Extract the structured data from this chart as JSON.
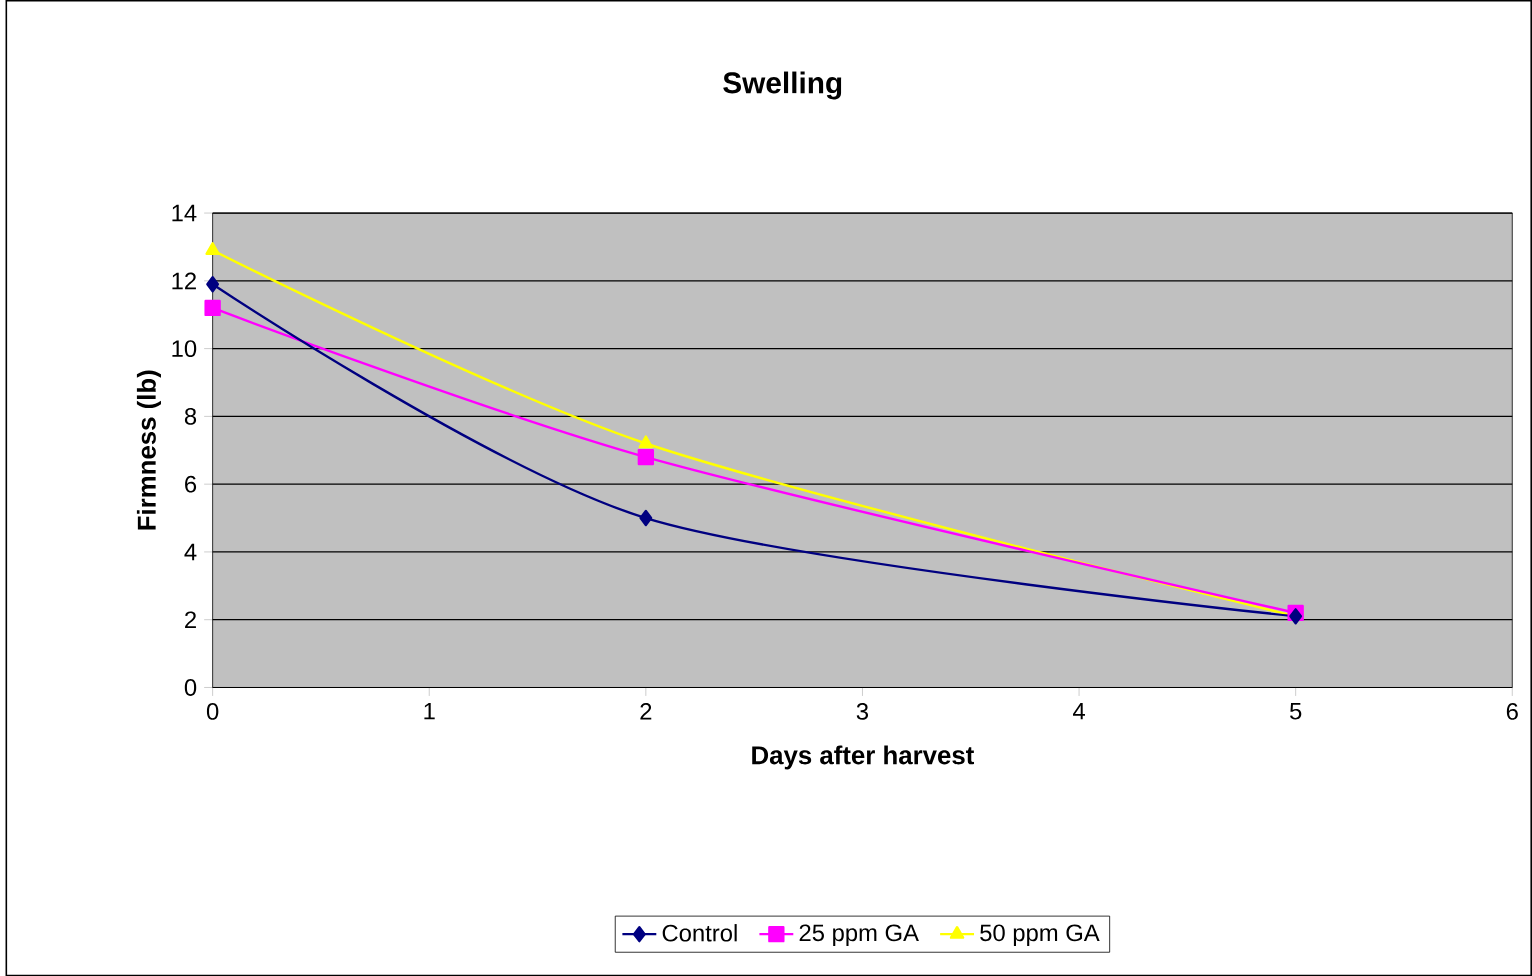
{
  "chart_data": {
    "type": "line",
    "title": "Swelling",
    "xlabel": "Days after harvest",
    "ylabel": "Firmness (lb)",
    "x": [
      0,
      2,
      5
    ],
    "xlim": [
      0,
      6
    ],
    "xticks": [
      0,
      1,
      2,
      3,
      4,
      5,
      6
    ],
    "ylim": [
      0,
      14
    ],
    "yticks": [
      0,
      2,
      4,
      6,
      8,
      10,
      12,
      14
    ],
    "grid": "y",
    "legend": "bottom",
    "series": [
      {
        "name": "Control",
        "color": "#000080",
        "marker": "diamond",
        "values": [
          11.9,
          5.0,
          2.1
        ]
      },
      {
        "name": "25 ppm GA",
        "color": "#ff00ff",
        "marker": "square",
        "values": [
          11.2,
          6.8,
          2.2
        ]
      },
      {
        "name": "50 ppm GA",
        "color": "#ffff00",
        "marker": "triangle",
        "values": [
          12.9,
          7.2,
          2.1
        ]
      }
    ]
  }
}
